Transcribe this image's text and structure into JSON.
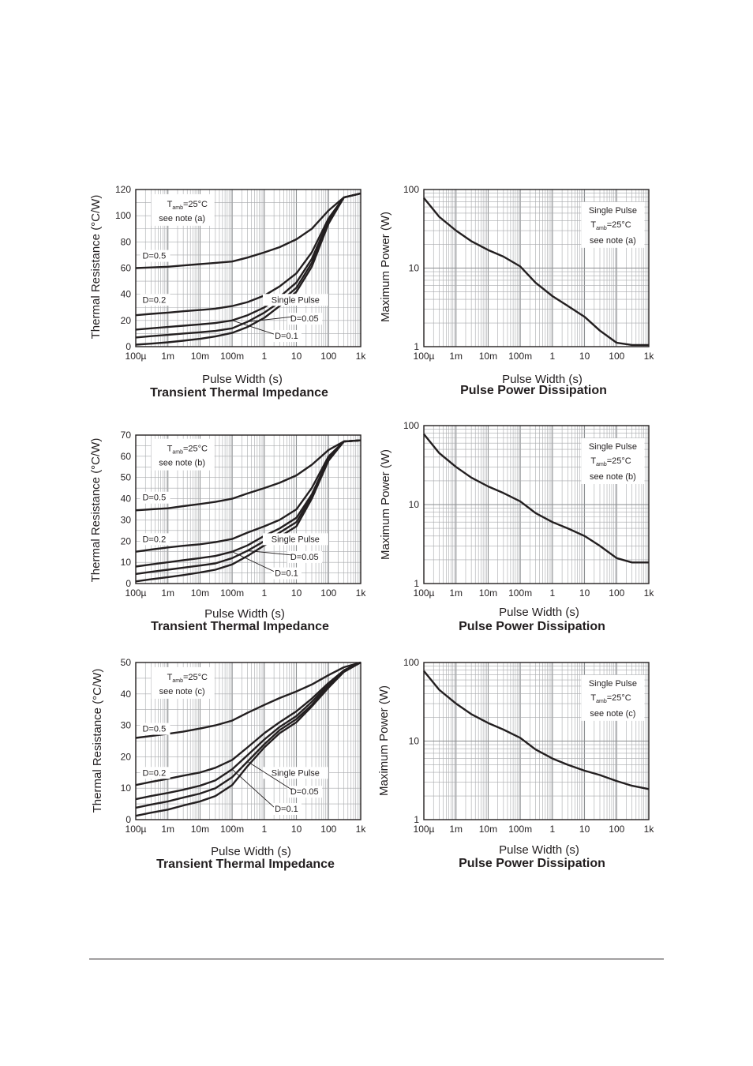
{
  "colors": {
    "ink": "#231f20",
    "grid": "#a7a9ac",
    "paper": "#ffffff"
  },
  "chart_data": [
    {
      "type": "line",
      "title": "Transient Thermal Impedance",
      "xlabel": "Pulse Width (s)",
      "ylabel": "Thermal Resistance (°C/W)",
      "x_scale": "log",
      "xlim": [
        0.0001,
        1000
      ],
      "ylim": [
        0,
        120
      ],
      "x_ticks": [
        0.0001,
        0.001,
        0.01,
        0.1,
        1,
        10,
        100,
        1000
      ],
      "x_tick_labels": [
        "100µ",
        "1m",
        "10m",
        "100m",
        "1",
        "10",
        "100",
        "1k"
      ],
      "y_ticks": [
        0,
        20,
        40,
        60,
        80,
        100,
        120
      ],
      "y_tick_labels": [
        "0",
        "20",
        "40",
        "60",
        "80",
        "100",
        "120"
      ],
      "grid": true,
      "note": {
        "t_main": "T",
        "t_sub": "amb",
        "t_rest": "=25°C",
        "line2": "see note (a)"
      },
      "labels": {
        "d05": "D=0.5",
        "d02": "D=0.2",
        "single": "Single Pulse",
        "d005": "D=0.05",
        "d01": "D=0.1"
      },
      "x": [
        0.0001,
        0.0003,
        0.001,
        0.003,
        0.01,
        0.03,
        0.1,
        0.3,
        1,
        3,
        10,
        30,
        100,
        300,
        1000
      ],
      "series": [
        {
          "name": "D=0.5",
          "values": [
            60,
            60.5,
            61,
            62,
            63,
            64,
            65,
            68,
            72,
            76,
            82,
            90,
            104,
            114,
            117
          ]
        },
        {
          "name": "D=0.2",
          "values": [
            24,
            25,
            26,
            27,
            28,
            29,
            31,
            34,
            39,
            46,
            56,
            72,
            98,
            114,
            117
          ]
        },
        {
          "name": "D=0.1",
          "values": [
            13,
            14,
            15,
            16,
            17,
            18,
            20,
            24,
            30,
            38,
            49,
            67,
            96,
            114,
            117
          ]
        },
        {
          "name": "D=0.05",
          "values": [
            7,
            8,
            9,
            10,
            11,
            12,
            14,
            19,
            26,
            34,
            45,
            64,
            95,
            114,
            117
          ]
        },
        {
          "name": "Single Pulse",
          "values": [
            1.5,
            2.3,
            3.3,
            4.5,
            6,
            7.8,
            10.5,
            15,
            22,
            31,
            42,
            61,
            94,
            114,
            117
          ]
        }
      ]
    },
    {
      "type": "line",
      "title": "Pulse Power Dissipation",
      "xlabel": "Pulse Width (s)",
      "ylabel": "Maximum Power (W)",
      "x_scale": "log",
      "y_scale": "log",
      "xlim": [
        0.0001,
        1000
      ],
      "ylim": [
        1,
        100
      ],
      "x_ticks": [
        0.0001,
        0.001,
        0.01,
        0.1,
        1,
        10,
        100,
        1000
      ],
      "x_tick_labels": [
        "100µ",
        "1m",
        "10m",
        "100m",
        "1",
        "10",
        "100",
        "1k"
      ],
      "y_ticks": [
        1,
        10,
        100
      ],
      "y_tick_labels": [
        "1",
        "10",
        "100"
      ],
      "grid": true,
      "note": {
        "line1": "Single Pulse",
        "t_main": "T",
        "t_sub": "amb",
        "t_rest": "=25°C",
        "line3": "see note (a)"
      },
      "x": [
        0.0001,
        0.0003,
        0.001,
        0.003,
        0.01,
        0.03,
        0.1,
        0.3,
        1,
        3,
        10,
        30,
        100,
        300,
        1000
      ],
      "series": [
        {
          "values": [
            78,
            45,
            30,
            22,
            17,
            14,
            10.5,
            6.5,
            4.4,
            3.3,
            2.4,
            1.6,
            1.12,
            1.05,
            1.05
          ]
        }
      ]
    },
    {
      "type": "line",
      "title": "Transient Thermal Impedance",
      "xlabel": "Pulse Width (s)",
      "ylabel": "Thermal Resistance (°C/W)",
      "x_scale": "log",
      "xlim": [
        0.0001,
        1000
      ],
      "ylim": [
        0,
        70
      ],
      "x_ticks": [
        0.0001,
        0.001,
        0.01,
        0.1,
        1,
        10,
        100,
        1000
      ],
      "x_tick_labels": [
        "100µ",
        "1m",
        "10m",
        "100m",
        "1",
        "10",
        "100",
        "1k"
      ],
      "y_ticks": [
        0,
        10,
        20,
        30,
        40,
        50,
        60,
        70
      ],
      "y_tick_labels": [
        "0",
        "10",
        "20",
        "30",
        "40",
        "50",
        "60",
        "70"
      ],
      "grid": true,
      "note": {
        "t_main": "T",
        "t_sub": "amb",
        "t_rest": "=25°C",
        "line2": "see note (b)"
      },
      "labels": {
        "d05": "D=0.5",
        "d02": "D=0.2",
        "single": "Single Pulse",
        "d005": "D=0.05",
        "d01": "D=0.1"
      },
      "x": [
        0.0001,
        0.0003,
        0.001,
        0.003,
        0.01,
        0.03,
        0.1,
        0.3,
        1,
        3,
        10,
        30,
        100,
        300,
        1000
      ],
      "series": [
        {
          "name": "D=0.5",
          "values": [
            34.5,
            35,
            35.5,
            36.5,
            37.5,
            38.5,
            40,
            42.5,
            45,
            47.5,
            51,
            56,
            63,
            67,
            67.5
          ]
        },
        {
          "name": "D=0.2",
          "values": [
            15,
            16,
            17,
            17.8,
            18.5,
            19.5,
            21,
            24,
            27,
            30,
            35,
            45,
            60,
            67,
            67.5
          ]
        },
        {
          "name": "D=0.1",
          "values": [
            8,
            9,
            10,
            11,
            12,
            13,
            15,
            18,
            22.5,
            26,
            31,
            42,
            59,
            67,
            67.5
          ]
        },
        {
          "name": "D=0.05",
          "values": [
            4.5,
            5.5,
            6.5,
            7.5,
            8.5,
            9.5,
            12,
            15.5,
            20,
            24,
            29,
            41,
            58.5,
            67,
            67.5
          ]
        },
        {
          "name": "Single Pulse",
          "values": [
            1,
            2,
            3,
            4,
            5.2,
            6.5,
            9,
            13,
            18,
            22,
            27,
            40,
            58,
            67,
            67.5
          ]
        }
      ]
    },
    {
      "type": "line",
      "title": "Pulse Power Dissipation",
      "xlabel": "Pulse Width (s)",
      "ylabel": "Maximum Power (W)",
      "x_scale": "log",
      "y_scale": "log",
      "xlim": [
        0.0001,
        1000
      ],
      "ylim": [
        1,
        100
      ],
      "x_ticks": [
        0.0001,
        0.001,
        0.01,
        0.1,
        1,
        10,
        100,
        1000
      ],
      "x_tick_labels": [
        "100µ",
        "1m",
        "10m",
        "100m",
        "1",
        "10",
        "100",
        "1k"
      ],
      "y_ticks": [
        1,
        10,
        100
      ],
      "y_tick_labels": [
        "1",
        "10",
        "100"
      ],
      "grid": true,
      "note": {
        "line1": "Single Pulse",
        "t_main": "T",
        "t_sub": "amb",
        "t_rest": "=25°C",
        "line3": "see note (b)"
      },
      "x": [
        0.0001,
        0.0003,
        0.001,
        0.003,
        0.01,
        0.03,
        0.1,
        0.3,
        1,
        3,
        10,
        30,
        100,
        300,
        1000
      ],
      "series": [
        {
          "values": [
            78,
            45,
            30,
            22,
            17,
            14,
            11,
            7.8,
            6,
            5,
            4,
            3,
            2.1,
            1.85,
            1.85
          ]
        }
      ]
    },
    {
      "type": "line",
      "title": "Transient Thermal Impedance",
      "xlabel": "Pulse Width (s)",
      "ylabel": "Thermal Resistance (°C/W)",
      "x_scale": "log",
      "xlim": [
        0.0001,
        1000
      ],
      "ylim": [
        0,
        50
      ],
      "x_ticks": [
        0.0001,
        0.001,
        0.01,
        0.1,
        1,
        10,
        100,
        1000
      ],
      "x_tick_labels": [
        "100µ",
        "1m",
        "10m",
        "100m",
        "1",
        "10",
        "100",
        "1k"
      ],
      "y_ticks": [
        0,
        10,
        20,
        30,
        40,
        50
      ],
      "y_tick_labels": [
        "0",
        "10",
        "20",
        "30",
        "40",
        "50"
      ],
      "grid": true,
      "note": {
        "t_main": "T",
        "t_sub": "amb",
        "t_rest": "=25°C",
        "line2": "see note (c)"
      },
      "labels": {
        "d05": "D=0.5",
        "d02": "D=0.2",
        "single": "Single Pulse",
        "d005": "D=0.05",
        "d01": "D=0.1"
      },
      "x": [
        0.0001,
        0.0003,
        0.001,
        0.003,
        0.01,
        0.03,
        0.1,
        0.3,
        1,
        3,
        10,
        30,
        100,
        300,
        1000
      ],
      "series": [
        {
          "name": "D=0.5",
          "values": [
            26,
            26.6,
            27.3,
            28,
            29,
            30,
            31.5,
            34,
            36.5,
            38.7,
            40.8,
            43,
            46,
            48.5,
            50
          ]
        },
        {
          "name": "D=0.2",
          "values": [
            11,
            12,
            13,
            14,
            15,
            16.5,
            19,
            23,
            27.5,
            31,
            34.5,
            38.5,
            43.5,
            47.5,
            50
          ]
        },
        {
          "name": "D=0.1",
          "values": [
            6.5,
            7.5,
            8.5,
            9.5,
            10.8,
            12.5,
            16,
            20.5,
            25.5,
            29.5,
            33,
            37.5,
            43,
            47.5,
            50
          ]
        },
        {
          "name": "D=0.05",
          "values": [
            3.8,
            4.8,
            5.8,
            7,
            8.3,
            10,
            13.5,
            18.5,
            24,
            28.5,
            32,
            36.5,
            42.5,
            47.5,
            50
          ]
        },
        {
          "name": "Single Pulse",
          "values": [
            1.2,
            2.2,
            3.2,
            4.5,
            5.8,
            7.5,
            11,
            17,
            23,
            27.5,
            31,
            36,
            42,
            47,
            50
          ]
        }
      ]
    },
    {
      "type": "line",
      "title": "Pulse Power Dissipation",
      "xlabel": "Pulse Width (s)",
      "ylabel": "Maximum Power (W)",
      "x_scale": "log",
      "y_scale": "log",
      "xlim": [
        0.0001,
        1000
      ],
      "ylim": [
        1,
        100
      ],
      "x_ticks": [
        0.0001,
        0.001,
        0.01,
        0.1,
        1,
        10,
        100,
        1000
      ],
      "x_tick_labels": [
        "100µ",
        "1m",
        "10m",
        "100m",
        "1",
        "10",
        "100",
        "1k"
      ],
      "y_ticks": [
        1,
        10,
        100
      ],
      "y_tick_labels": [
        "1",
        "10",
        "100"
      ],
      "grid": true,
      "note": {
        "line1": "Single Pulse",
        "t_main": "T",
        "t_sub": "amb",
        "t_rest": "=25°C",
        "line3": "see note (c)"
      },
      "x": [
        0.0001,
        0.0003,
        0.001,
        0.003,
        0.01,
        0.03,
        0.1,
        0.3,
        1,
        3,
        10,
        30,
        100,
        300,
        1000
      ],
      "series": [
        {
          "values": [
            78,
            45,
            30,
            22,
            17,
            14,
            11,
            7.8,
            6,
            5,
            4.2,
            3.7,
            3.1,
            2.7,
            2.45
          ]
        }
      ]
    }
  ]
}
